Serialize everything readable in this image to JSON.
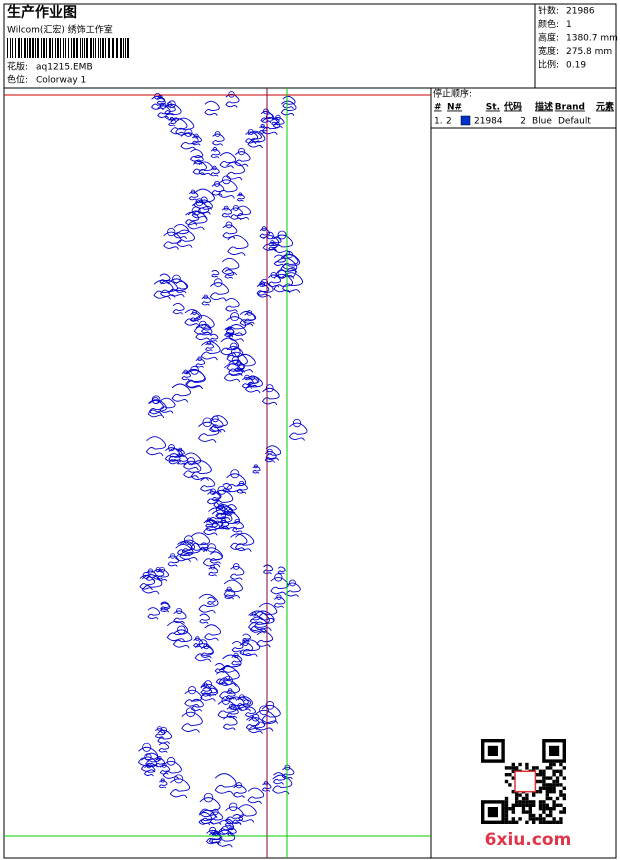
{
  "header": {
    "title": "生产作业图",
    "studio": "Wilcom(汇宏) 绣饰工作室",
    "design_label": "花版:",
    "design": "aq1215.EMB",
    "colorway_label": "色位:",
    "colorway": "Colorway 1"
  },
  "stats": [
    {
      "label": "针数:",
      "value": "21986"
    },
    {
      "label": "颜色:",
      "value": "1"
    },
    {
      "label": "高度:",
      "value": "1380.7 mm"
    },
    {
      "label": "宽度:",
      "value": "275.8 mm"
    },
    {
      "label": "比例:",
      "value": "0.19"
    }
  ],
  "stop_sequence": {
    "title": "停止顺序:",
    "columns": [
      "#",
      "N#",
      "St.",
      "代码",
      "描述",
      "Brand",
      "元素"
    ],
    "rows": [
      [
        "1.",
        "2",
        "21984",
        "2",
        "Blue",
        "Default"
      ]
    ]
  },
  "watermark": "6xiu.com"
}
